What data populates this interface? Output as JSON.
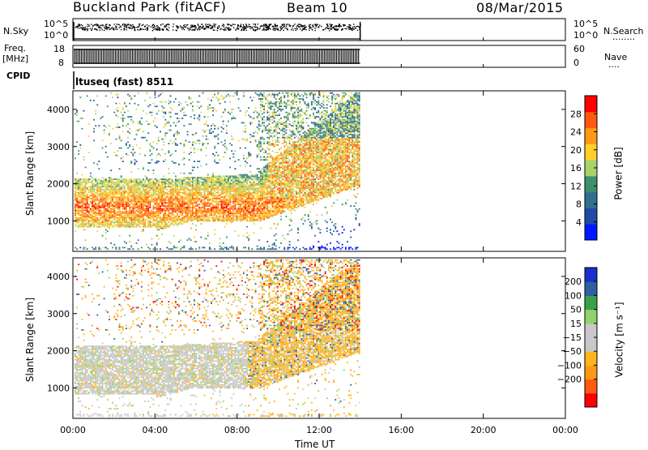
{
  "header": {
    "station": "Buckland Park (fitACF)",
    "beam": "Beam 10",
    "date": "08/Mar/2015"
  },
  "left_labels": {
    "nsky": "N.Sky",
    "freq_line1": "Freq.",
    "freq_line2": "[MHz]",
    "cpid": "CPID"
  },
  "right_labels": {
    "nsearch": "N.Search",
    "nsearch_dots": "........",
    "nave": "Nave",
    "nave_dots": "...."
  },
  "cpid_text": "ltuseq (fast) 8511",
  "colors": {
    "axis": "#000000",
    "power_scale": [
      "#0018ff",
      "#1f4aa8",
      "#2f6f90",
      "#3e8f6e",
      "#a7d36b",
      "#ffcf2a",
      "#ff9a18",
      "#ff5a10",
      "#ff0000"
    ],
    "velocity_scale": [
      "#ff0000",
      "#ff5a10",
      "#ff9a18",
      "#ffb51c",
      "#c8c8c8",
      "#c8c8c8",
      "#8fd36a",
      "#3aa04a",
      "#2f5fa0",
      "#1a2fcc"
    ]
  },
  "chart_data": [
    {
      "type": "line",
      "title": "N.Sky / N.Search",
      "ylabel": "N.Sky",
      "y_ticks_left": [
        "10^5",
        "10^0"
      ],
      "y_ticks_right": [
        "10^5",
        "10^0"
      ],
      "x_range_hours": [
        0,
        24
      ],
      "data_end_hour": 14,
      "legend_right": "N.Search"
    },
    {
      "type": "line",
      "title": "Freq. / Nave",
      "ylabel": "Freq. [MHz]",
      "y_ticks_left": [
        "18",
        "8"
      ],
      "y_ticks_right": [
        "60",
        "0"
      ],
      "x_range_hours": [
        0,
        24
      ],
      "data_end_hour": 14,
      "legend_right": "Nave"
    },
    {
      "type": "heatmap",
      "title": "Power",
      "ylabel": "Slant Range [km]",
      "colorbar_label": "Power [dB]",
      "colorbar_ticks": [
        "28",
        "24",
        "20",
        "16",
        "12",
        "8",
        "4"
      ],
      "colorbar_tick_values": [
        28,
        24,
        20,
        16,
        12,
        8,
        4
      ],
      "colorbar_range": [
        0,
        32
      ],
      "ylim": [
        180,
        4500
      ],
      "y_ticks": [
        1000,
        2000,
        3000,
        4000
      ],
      "x_range_hours": [
        0,
        24
      ],
      "data_end_hour": 14
    },
    {
      "type": "heatmap",
      "title": "Velocity",
      "ylabel": "Slant Range [km]",
      "colorbar_label": "Velocity [m s⁻¹]",
      "colorbar_ticks": [
        "200",
        "100",
        "50",
        "15",
        "−15",
        "−50",
        "−100",
        "−200"
      ],
      "colorbar_tick_values": [
        200,
        100,
        50,
        15,
        -15,
        -50,
        -100,
        -200
      ],
      "ylim": [
        180,
        4500
      ],
      "y_ticks": [
        1000,
        2000,
        3000,
        4000
      ],
      "x_range_hours": [
        0,
        24
      ],
      "data_end_hour": 14
    }
  ],
  "x_axis": {
    "label": "Time UT",
    "ticks": [
      "00:00",
      "04:00",
      "08:00",
      "12:00",
      "16:00",
      "20:00",
      "00:00"
    ],
    "tick_hours": [
      0,
      4,
      8,
      12,
      16,
      20,
      24
    ]
  }
}
